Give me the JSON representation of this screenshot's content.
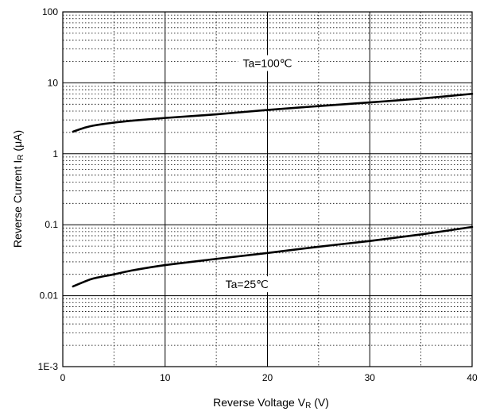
{
  "chart_data": {
    "type": "line",
    "xlabel": "Reverse Voltage V",
    "xlabel_sub": "R",
    "xlabel_unit": " (V)",
    "ylabel": "Reverse Current  I",
    "ylabel_sub": "R",
    "ylabel_unit": " (μA)",
    "xlim": [
      0,
      40
    ],
    "ylim": [
      0.001,
      100
    ],
    "yscale": "log",
    "grid": true,
    "x_ticks": [
      0,
      10,
      20,
      30,
      40
    ],
    "x_tick_labels": [
      "0",
      "10",
      "20",
      "30",
      "40"
    ],
    "y_ticks": [
      0.001,
      0.01,
      0.1,
      1,
      10,
      100
    ],
    "y_tick_labels": [
      "1E-3",
      "0.01",
      "0.1",
      "1",
      "10",
      "100"
    ],
    "series": [
      {
        "x": [
          1,
          2,
          3,
          5,
          7,
          10,
          15,
          20,
          25,
          30,
          35,
          40
        ],
        "y": [
          2.05,
          2.3,
          2.5,
          2.75,
          2.95,
          3.2,
          3.6,
          4.15,
          4.7,
          5.3,
          6.0,
          7.0
        ]
      },
      {
        "x": [
          1,
          2,
          3,
          5,
          7,
          10,
          15,
          20,
          25,
          30,
          35,
          40
        ],
        "y": [
          0.0135,
          0.0155,
          0.0175,
          0.02,
          0.023,
          0.027,
          0.033,
          0.04,
          0.049,
          0.059,
          0.073,
          0.093
        ]
      }
    ],
    "annotations": [
      {
        "text": "Ta=100℃",
        "x": 20,
        "y": 19
      },
      {
        "text": "Ta=25℃",
        "x": 18,
        "y": 0.0145
      }
    ]
  }
}
